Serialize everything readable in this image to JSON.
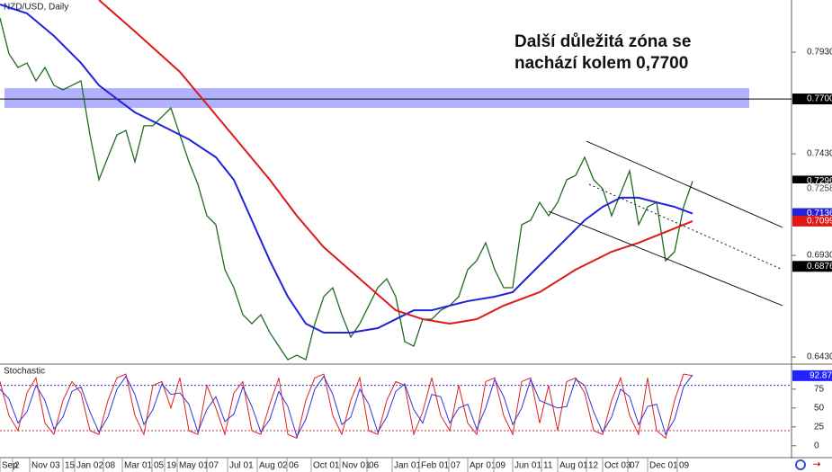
{
  "chart_data": {
    "type": "line",
    "title": "NZD/USD, Daily",
    "annotation": [
      "Další důležitá zóna se",
      "nachází kolem 0,7700"
    ],
    "xlim": [
      0,
      88
    ],
    "ylim": [
      0.6395,
      0.8187
    ],
    "yticks": [
      {
        "value": 0.793,
        "label": "0.7930"
      },
      {
        "value": 0.743,
        "label": "0.7430"
      },
      {
        "value": 0.693,
        "label": "0.6930"
      },
      {
        "value": 0.643,
        "label": "0.6430"
      }
    ],
    "xticks": [
      {
        "value": 0.2,
        "label": "Sep"
      },
      {
        "value": 1.6,
        "label": "2"
      },
      {
        "value": 3.5,
        "label": "Nov 03"
      },
      {
        "value": 7.2,
        "label": "15"
      },
      {
        "value": 8.5,
        "label": "Jan 02"
      },
      {
        "value": 11.7,
        "label": "08"
      },
      {
        "value": 13.8,
        "label": "Mar 01"
      },
      {
        "value": 17.1,
        "label": "05"
      },
      {
        "value": 18.5,
        "label": "19"
      },
      {
        "value": 19.9,
        "label": "May 01"
      },
      {
        "value": 23.2,
        "label": "07"
      },
      {
        "value": 25.5,
        "label": "Jul 01"
      },
      {
        "value": 28.8,
        "label": "Aug 02"
      },
      {
        "value": 32.1,
        "label": "06"
      },
      {
        "value": 34.8,
        "label": "Oct 01"
      },
      {
        "value": 38.0,
        "label": "Nov 01"
      },
      {
        "value": 41.0,
        "label": "06"
      },
      {
        "value": 43.8,
        "label": "Jan 01"
      },
      {
        "value": 46.8,
        "label": "Feb 01"
      },
      {
        "value": 50.1,
        "label": "07"
      },
      {
        "value": 52.2,
        "label": "Apr 01"
      },
      {
        "value": 55.1,
        "label": "09"
      },
      {
        "value": 57.2,
        "label": "Jun 01"
      },
      {
        "value": 60.4,
        "label": "11"
      },
      {
        "value": 62.2,
        "label": "Aug 01"
      },
      {
        "value": 65.4,
        "label": "12"
      },
      {
        "value": 67.2,
        "label": "Oct 03"
      },
      {
        "value": 70.0,
        "label": "07"
      },
      {
        "value": 72.2,
        "label": "Dec 01"
      },
      {
        "value": 75.5,
        "label": "09"
      }
    ],
    "x": [
      0,
      1,
      2,
      3,
      4,
      5,
      6,
      7,
      8,
      9,
      10,
      11,
      12,
      13,
      14,
      15,
      16,
      17,
      18,
      19,
      20,
      21,
      22,
      23,
      24,
      25,
      26,
      27,
      28,
      29,
      30,
      31,
      32,
      33,
      34,
      35,
      36,
      37,
      38,
      39,
      40,
      41,
      42,
      43,
      44,
      45,
      46,
      47,
      48,
      49,
      50,
      51,
      52,
      53,
      54,
      55,
      56,
      57,
      58,
      59,
      60,
      61,
      62,
      63,
      64,
      65,
      66,
      67,
      68,
      69,
      70,
      71,
      72,
      73,
      74,
      75,
      76,
      77
    ],
    "series": [
      {
        "color": "#1f6b1f",
        "values": [
          0.8099,
          0.7922,
          0.7855,
          0.7877,
          0.7789,
          0.7855,
          0.7767,
          0.7745,
          0.7767,
          0.7789,
          0.7523,
          0.7302,
          0.7413,
          0.7523,
          0.7545,
          0.7391,
          0.7568,
          0.7568,
          0.7612,
          0.7656,
          0.7523,
          0.7391,
          0.728,
          0.7125,
          0.7081,
          0.686,
          0.6771,
          0.6638,
          0.6594,
          0.6638,
          0.655,
          0.6483,
          0.6417,
          0.6439,
          0.6417,
          0.6594,
          0.6727,
          0.6771,
          0.6638,
          0.6528,
          0.6594,
          0.6683,
          0.6771,
          0.6815,
          0.6727,
          0.6506,
          0.6483,
          0.6616,
          0.6616,
          0.666,
          0.6683,
          0.6727,
          0.686,
          0.6904,
          0.6992,
          0.686,
          0.6771,
          0.6771,
          0.7081,
          0.7103,
          0.7191,
          0.7125,
          0.7191,
          0.7302,
          0.7324,
          0.7413,
          0.7302,
          0.7258,
          0.7125,
          0.7236,
          0.7346,
          0.7081,
          0.7169,
          0.7191,
          0.6904,
          0.6948,
          0.7169,
          0.7296
        ]
      },
      {
        "color": "#2222dd",
        "x": [
          0,
          3,
          6,
          9,
          11,
          13,
          15,
          18,
          21,
          24,
          26,
          28,
          30,
          32,
          34,
          36,
          39,
          42,
          44,
          46,
          48,
          50,
          52,
          55,
          57,
          59,
          61,
          63,
          65,
          67,
          69,
          71,
          73,
          75,
          77
        ],
        "values": [
          0.8165,
          0.8121,
          0.801,
          0.7877,
          0.7767,
          0.77,
          0.7634,
          0.7568,
          0.7501,
          0.7413,
          0.7302,
          0.7103,
          0.6904,
          0.6727,
          0.6594,
          0.655,
          0.655,
          0.6572,
          0.6616,
          0.666,
          0.666,
          0.6683,
          0.6705,
          0.6727,
          0.6749,
          0.6838,
          0.6926,
          0.7014,
          0.7103,
          0.7169,
          0.7214,
          0.7214,
          0.7191,
          0.7169,
          0.7136
        ]
      },
      {
        "color": "#e01818",
        "x": [
          11,
          15,
          20,
          25,
          30,
          33,
          36,
          40,
          44,
          47,
          50,
          53,
          56,
          60,
          64,
          68,
          71,
          74,
          77
        ],
        "values": [
          0.8187,
          0.8032,
          0.7833,
          0.7568,
          0.7302,
          0.7125,
          0.697,
          0.6815,
          0.666,
          0.6616,
          0.6594,
          0.6616,
          0.6683,
          0.6749,
          0.686,
          0.6948,
          0.6992,
          0.7045,
          0.7099
        ]
      }
    ],
    "zone": {
      "range": [
        0.7656,
        0.7753
      ],
      "level": 0.77,
      "color": "#9d9dff"
    },
    "channel": [
      {
        "x": [
          65.2,
          87
        ],
        "values": [
          0.7492,
          0.7068
        ],
        "dashed": false
      },
      {
        "x": [
          65.5,
          87
        ],
        "values": [
          0.728,
          0.686
        ],
        "dashed": true
      },
      {
        "x": [
          61,
          87
        ],
        "values": [
          0.7147,
          0.6683
        ],
        "dashed": false
      }
    ],
    "price_labels": [
      {
        "value": 0.77,
        "label": "0.7700",
        "color": "#000000"
      },
      {
        "value": 0.7296,
        "label": "0.7296",
        "color": "#000000"
      },
      {
        "value": 0.7258,
        "label": "0.7258",
        "color": "#ffffff"
      },
      {
        "value": 0.7136,
        "label": "0.7136",
        "color": "#2222dd"
      },
      {
        "value": 0.7099,
        "label": "0.7099",
        "color": "#e01818"
      },
      {
        "value": 0.6876,
        "label": "0.6876",
        "color": "#000000"
      }
    ],
    "stochastic": {
      "title": "Stochastic",
      "ylim": [
        -11,
        107
      ],
      "yticks": [
        0,
        25,
        50,
        75
      ],
      "levels": [
        {
          "value": 80,
          "color": "#3333cc"
        },
        {
          "value": 20,
          "color": "#cc3333"
        }
      ],
      "series": [
        {
          "color": "#e02020",
          "values": [
            85,
            40,
            20,
            70,
            90,
            30,
            15,
            60,
            85,
            70,
            20,
            15,
            60,
            90,
            95,
            40,
            15,
            80,
            85,
            50,
            90,
            20,
            15,
            80,
            50,
            15,
            70,
            85,
            20,
            15,
            55,
            90,
            15,
            10,
            60,
            90,
            95,
            40,
            15,
            60,
            90,
            20,
            15,
            60,
            85,
            80,
            15,
            45,
            90,
            40,
            20,
            80,
            30,
            15,
            85,
            90,
            40,
            15,
            85,
            90,
            30,
            80,
            20,
            85,
            90,
            70,
            20,
            15,
            60,
            90,
            40,
            15,
            90,
            20,
            10,
            60,
            95,
            92.87
          ]
        },
        {
          "color": "#3333dd",
          "values": [
            75,
            62,
            30,
            45,
            80,
            60,
            22,
            38,
            72,
            78,
            45,
            18,
            38,
            75,
            92,
            68,
            28,
            48,
            82,
            68,
            70,
            55,
            18,
            48,
            65,
            32,
            42,
            78,
            52,
            18,
            35,
            72,
            52,
            12,
            35,
            75,
            92,
            68,
            28,
            38,
            75,
            55,
            18,
            38,
            72,
            82,
            48,
            30,
            68,
            65,
            30,
            50,
            55,
            22,
            50,
            88,
            65,
            28,
            50,
            88,
            60,
            55,
            50,
            52,
            88,
            80,
            45,
            18,
            38,
            75,
            65,
            28,
            52,
            55,
            15,
            35,
            78,
            94
          ]
        }
      ],
      "value_label": 92.87,
      "value_label_color": "#2222ff"
    }
  }
}
